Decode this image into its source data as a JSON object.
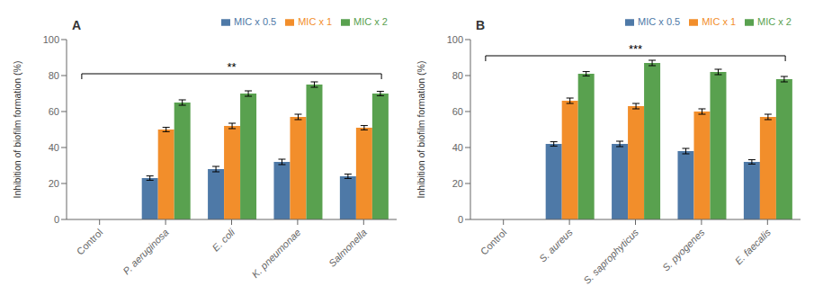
{
  "chart_data": [
    {
      "type": "bar",
      "title": "A",
      "categories": [
        "Control",
        "P. aeruginosa",
        "E. coli",
        "K. pneumonae",
        "Salmonella"
      ],
      "series": [
        {
          "name": "MIC x 0.5",
          "color": "#4e79a7",
          "values": [
            null,
            23,
            28,
            32,
            24
          ],
          "errors": [
            null,
            1.2,
            1.5,
            1.5,
            1.2
          ]
        },
        {
          "name": "MIC x 1",
          "color": "#f28e2b",
          "values": [
            null,
            50,
            52,
            57,
            51
          ],
          "errors": [
            null,
            1.2,
            1.5,
            1.5,
            1.2
          ]
        },
        {
          "name": "MIC x 2",
          "color": "#59a14f",
          "values": [
            null,
            65,
            70,
            75,
            70
          ],
          "errors": [
            null,
            1.5,
            1.5,
            1.5,
            1.2
          ]
        }
      ],
      "annotations": [
        {
          "text": "**",
          "y": 81
        }
      ],
      "ylabel": "Inhibition of biofilm formation (%)",
      "ylim": [
        0,
        100
      ],
      "yticks": [
        0,
        20,
        40,
        60,
        80,
        100
      ],
      "grid": false,
      "legend": "upper right"
    },
    {
      "type": "bar",
      "title": "B",
      "categories": [
        "Control",
        "S. aureus",
        "S. saprophyticus",
        "S. pyogenes",
        "E. faecalis"
      ],
      "series": [
        {
          "name": "MIC x 0.5",
          "color": "#4e79a7",
          "values": [
            null,
            42,
            42,
            38,
            32
          ],
          "errors": [
            null,
            1.2,
            1.5,
            1.5,
            1.2
          ]
        },
        {
          "name": "MIC x 1",
          "color": "#f28e2b",
          "values": [
            null,
            66,
            63,
            60,
            57
          ],
          "errors": [
            null,
            1.5,
            1.5,
            1.5,
            1.5
          ]
        },
        {
          "name": "MIC x 2",
          "color": "#59a14f",
          "values": [
            null,
            81,
            87,
            82,
            78
          ],
          "errors": [
            null,
            1.2,
            1.5,
            1.5,
            1.5
          ]
        }
      ],
      "annotations": [
        {
          "text": "***",
          "y": 91
        }
      ],
      "ylabel": "Inhibition of biofilm formation (%)",
      "ylim": [
        0,
        100
      ],
      "yticks": [
        0,
        20,
        40,
        60,
        80,
        100
      ],
      "grid": false,
      "legend": "upper right"
    }
  ]
}
